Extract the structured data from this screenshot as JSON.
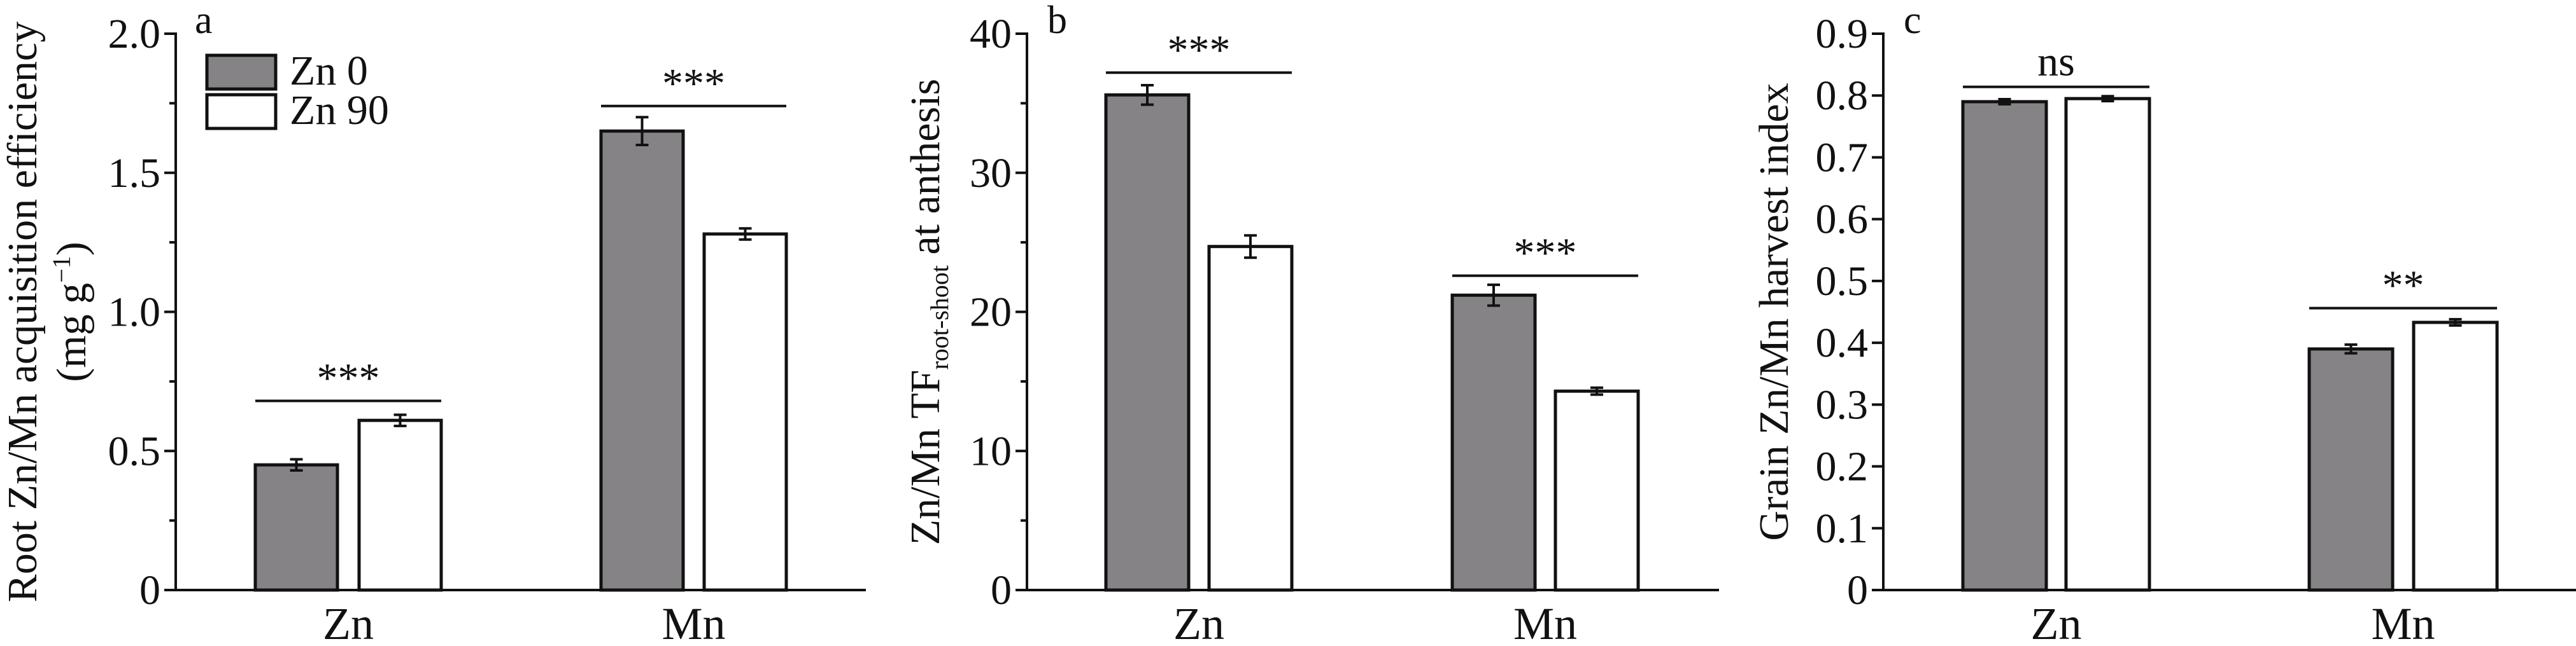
{
  "chart_data": [
    {
      "type": "bar",
      "panel_label": "a",
      "ylabel_line1": "Root Zn/Mn acquisition efficiency",
      "ylabel_line2_main": "(mg g",
      "ylabel_line2_sup": "−1",
      "ylabel_line2_end": ")",
      "ylim": [
        0,
        2.0
      ],
      "yticks": [
        0,
        0.5,
        1.0,
        1.5,
        2.0
      ],
      "ytick_labels": [
        "0",
        "0.5",
        "1.0",
        "1.5",
        "2.0"
      ],
      "minor_step": 0.25,
      "categories": [
        "Zn",
        "Mn"
      ],
      "series": [
        {
          "name": "Zn 0",
          "color": "#858385",
          "values": [
            0.45,
            1.65
          ],
          "errors": [
            0.02,
            0.05
          ]
        },
        {
          "name": "Zn 90",
          "color": "#ffffff",
          "values": [
            0.61,
            1.28
          ],
          "errors": [
            0.02,
            0.02
          ]
        }
      ],
      "significance": [
        {
          "category": "Zn",
          "label": "***",
          "level": 0.68
        },
        {
          "category": "Mn",
          "label": "***",
          "level": 1.74
        }
      ],
      "legend": {
        "placement": "top-left",
        "entries": [
          "Zn 0",
          "Zn 90"
        ]
      }
    },
    {
      "type": "bar",
      "panel_label": "b",
      "ylabel_main": "Zn/Mn TF",
      "ylabel_sub": "root-shoot",
      "ylabel_end": " at anthesis",
      "ylim": [
        0,
        40
      ],
      "yticks": [
        0,
        10,
        20,
        30,
        40
      ],
      "ytick_labels": [
        "0",
        "10",
        "20",
        "30",
        "40"
      ],
      "minor_step": 5,
      "categories": [
        "Zn",
        "Mn"
      ],
      "series": [
        {
          "name": "Zn 0",
          "color": "#858385",
          "values": [
            35.6,
            21.2
          ],
          "errors": [
            0.7,
            0.75
          ]
        },
        {
          "name": "Zn 90",
          "color": "#ffffff",
          "values": [
            24.7,
            14.3
          ],
          "errors": [
            0.8,
            0.25
          ]
        }
      ],
      "significance": [
        {
          "category": "Zn",
          "label": "***",
          "level": 37.2
        },
        {
          "category": "Mn",
          "label": "***",
          "level": 22.6
        }
      ]
    },
    {
      "type": "bar",
      "panel_label": "c",
      "ylabel": "Grain Zn/Mn harvest index",
      "ylim": [
        0,
        0.9
      ],
      "yticks": [
        0,
        0.1,
        0.2,
        0.3,
        0.4,
        0.5,
        0.6,
        0.7,
        0.8,
        0.9
      ],
      "ytick_labels": [
        "0",
        "0.1",
        "0.2",
        "0.3",
        "0.4",
        "0.5",
        "0.6",
        "0.7",
        "0.8",
        "0.9"
      ],
      "minor_step": null,
      "categories": [
        "Zn",
        "Mn"
      ],
      "series": [
        {
          "name": "Zn 0",
          "color": "#858385",
          "values": [
            0.79,
            0.39
          ],
          "errors": [
            0.004,
            0.007
          ]
        },
        {
          "name": "Zn 90",
          "color": "#ffffff",
          "values": [
            0.795,
            0.433
          ],
          "errors": [
            0.004,
            0.005
          ]
        }
      ],
      "significance": [
        {
          "category": "Zn",
          "label": "ns",
          "level": 0.814
        },
        {
          "category": "Mn",
          "label": "**",
          "level": 0.456
        }
      ]
    }
  ]
}
